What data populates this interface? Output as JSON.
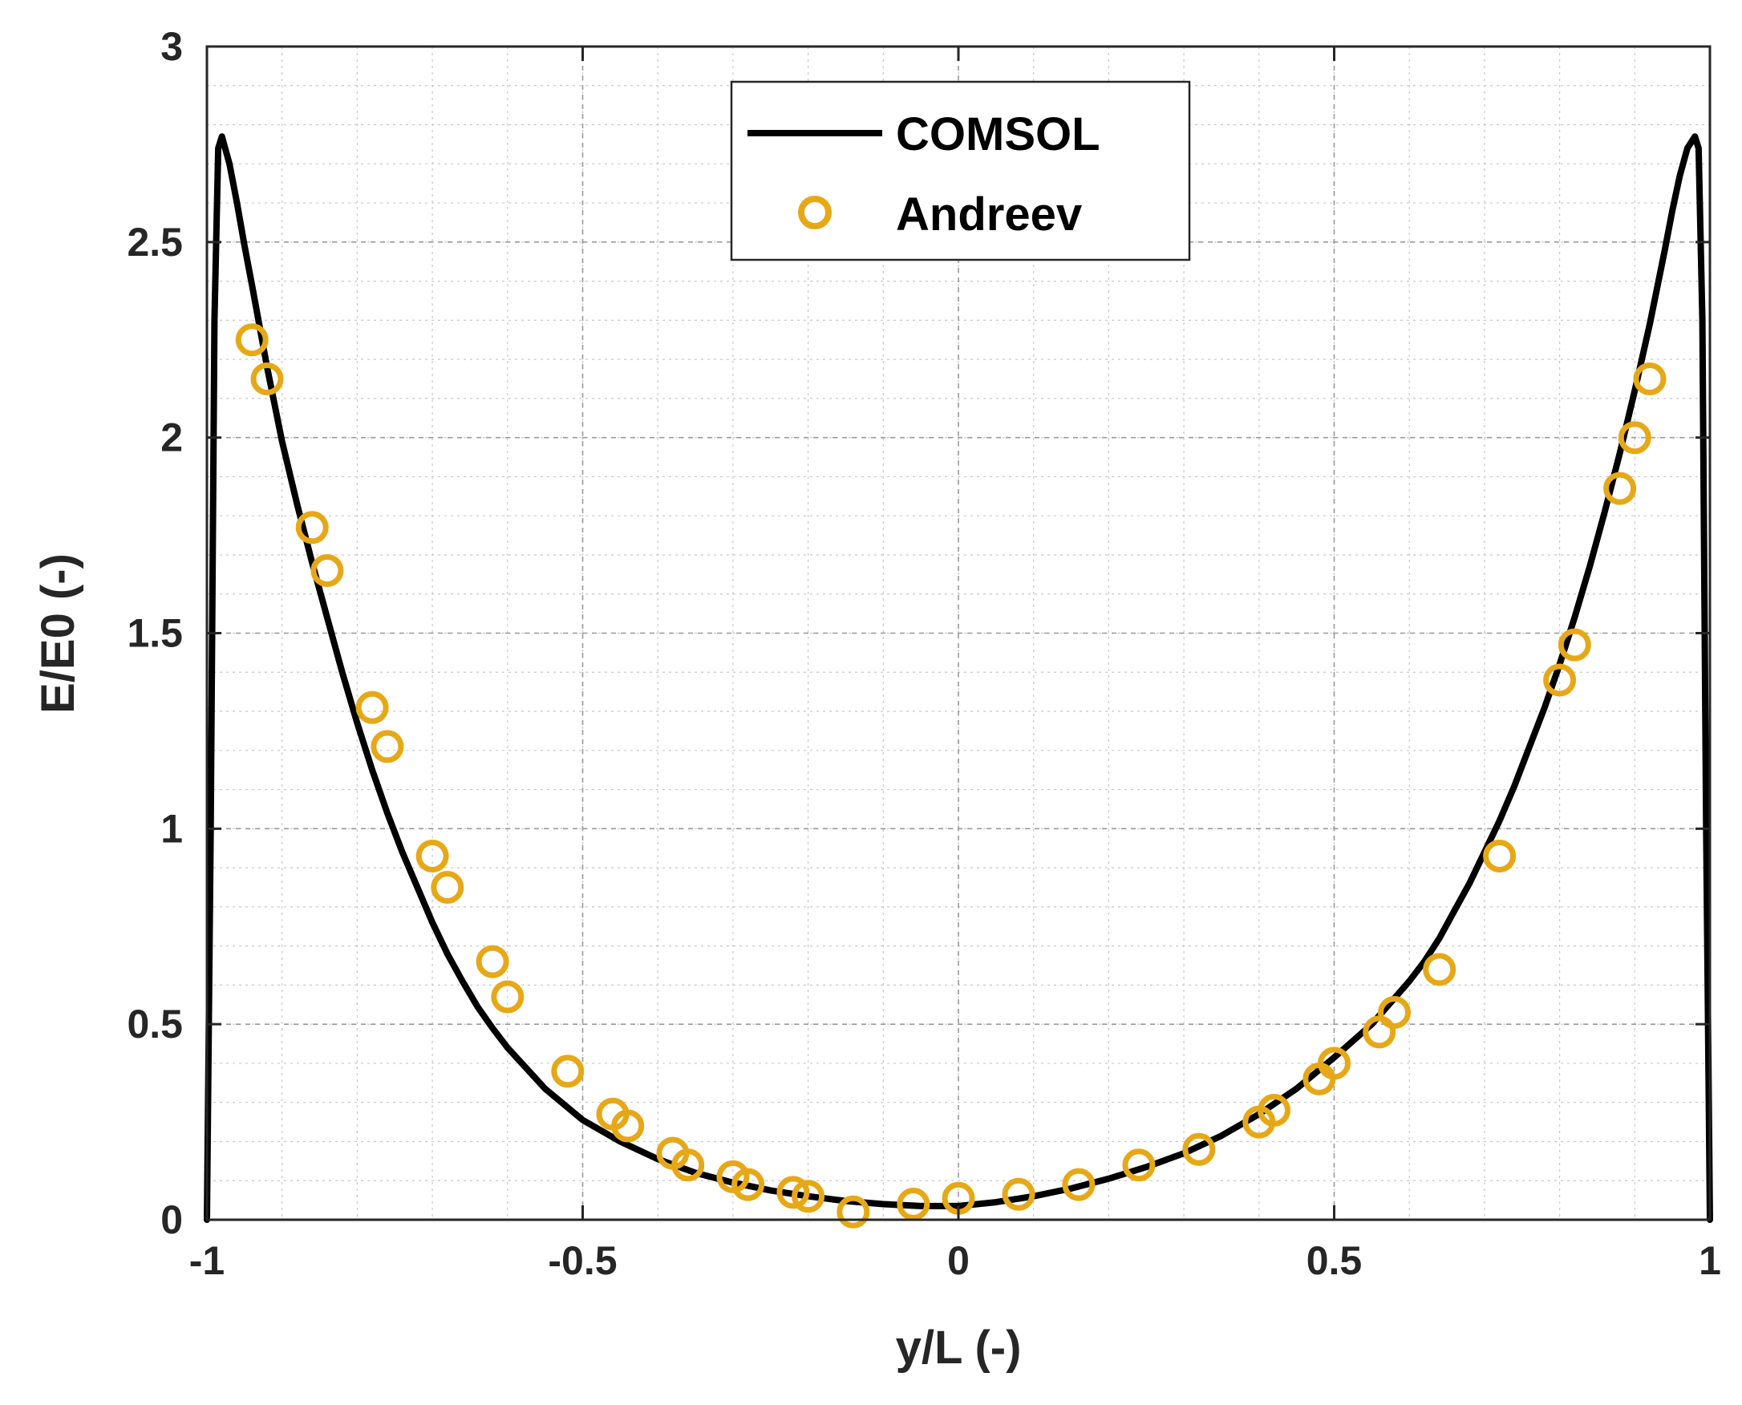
{
  "chart_data": {
    "type": "line",
    "title": "",
    "xlabel": "y/L (-)",
    "ylabel": "E/E0 (-)",
    "xlim": [
      -1,
      1
    ],
    "ylim": [
      0,
      3
    ],
    "xticks": [
      -1,
      -0.5,
      0,
      0.5,
      1
    ],
    "yticks": [
      0,
      0.5,
      1,
      1.5,
      2,
      2.5,
      3
    ],
    "xtick_labels": [
      "-1",
      "-0.5",
      "0",
      "0.5",
      "1"
    ],
    "ytick_labels": [
      "0",
      "0.5",
      "1",
      "1.5",
      "2",
      "2.5",
      "3"
    ],
    "grid": true,
    "minor_grid": true,
    "legend_position": "top-center",
    "series": [
      {
        "name": "COMSOL",
        "style": "line",
        "color": "#000000",
        "x": [
          -1.0,
          -0.995,
          -0.99,
          -0.985,
          -0.98,
          -0.97,
          -0.96,
          -0.95,
          -0.94,
          -0.92,
          -0.9,
          -0.88,
          -0.86,
          -0.84,
          -0.82,
          -0.8,
          -0.78,
          -0.76,
          -0.74,
          -0.72,
          -0.7,
          -0.68,
          -0.66,
          -0.64,
          -0.62,
          -0.6,
          -0.55,
          -0.5,
          -0.45,
          -0.4,
          -0.35,
          -0.3,
          -0.25,
          -0.2,
          -0.15,
          -0.1,
          -0.05,
          0.0,
          0.05,
          0.1,
          0.15,
          0.2,
          0.25,
          0.3,
          0.35,
          0.4,
          0.45,
          0.5,
          0.55,
          0.6,
          0.62,
          0.64,
          0.66,
          0.68,
          0.7,
          0.72,
          0.74,
          0.76,
          0.78,
          0.8,
          0.82,
          0.84,
          0.86,
          0.88,
          0.9,
          0.92,
          0.94,
          0.95,
          0.96,
          0.97,
          0.98,
          0.985,
          0.99,
          0.995,
          1.0
        ],
        "y": [
          0.0,
          1.0,
          2.3,
          2.74,
          2.77,
          2.7,
          2.6,
          2.49,
          2.39,
          2.18,
          1.99,
          1.83,
          1.68,
          1.54,
          1.4,
          1.27,
          1.15,
          1.04,
          0.94,
          0.85,
          0.76,
          0.68,
          0.61,
          0.545,
          0.49,
          0.44,
          0.335,
          0.255,
          0.2,
          0.155,
          0.12,
          0.095,
          0.075,
          0.06,
          0.048,
          0.04,
          0.035,
          0.035,
          0.045,
          0.06,
          0.08,
          0.105,
          0.135,
          0.17,
          0.215,
          0.27,
          0.335,
          0.415,
          0.5,
          0.61,
          0.66,
          0.72,
          0.79,
          0.86,
          0.94,
          1.02,
          1.11,
          1.21,
          1.31,
          1.42,
          1.54,
          1.67,
          1.81,
          1.96,
          2.12,
          2.29,
          2.48,
          2.58,
          2.67,
          2.74,
          2.77,
          2.74,
          2.3,
          1.0,
          0.0
        ]
      },
      {
        "name": "Andreev",
        "style": "marker",
        "marker": "circle",
        "color": "#E6A817",
        "x": [
          -0.94,
          -0.92,
          -0.86,
          -0.84,
          -0.78,
          -0.76,
          -0.7,
          -0.68,
          -0.62,
          -0.6,
          -0.52,
          -0.46,
          -0.44,
          -0.38,
          -0.36,
          -0.3,
          -0.28,
          -0.22,
          -0.2,
          -0.14,
          -0.06,
          0.0,
          0.08,
          0.16,
          0.24,
          0.32,
          0.4,
          0.42,
          0.48,
          0.5,
          0.56,
          0.58,
          0.64,
          0.72,
          0.8,
          0.82,
          0.88,
          0.9,
          0.92
        ],
        "y": [
          2.25,
          2.15,
          1.77,
          1.66,
          1.31,
          1.21,
          0.93,
          0.85,
          0.66,
          0.57,
          0.38,
          0.27,
          0.24,
          0.17,
          0.14,
          0.11,
          0.09,
          0.07,
          0.06,
          0.02,
          0.04,
          0.055,
          0.065,
          0.09,
          0.14,
          0.18,
          0.25,
          0.28,
          0.36,
          0.4,
          0.48,
          0.53,
          0.64,
          0.93,
          1.38,
          1.47,
          1.87,
          2.0,
          2.15
        ]
      }
    ]
  }
}
